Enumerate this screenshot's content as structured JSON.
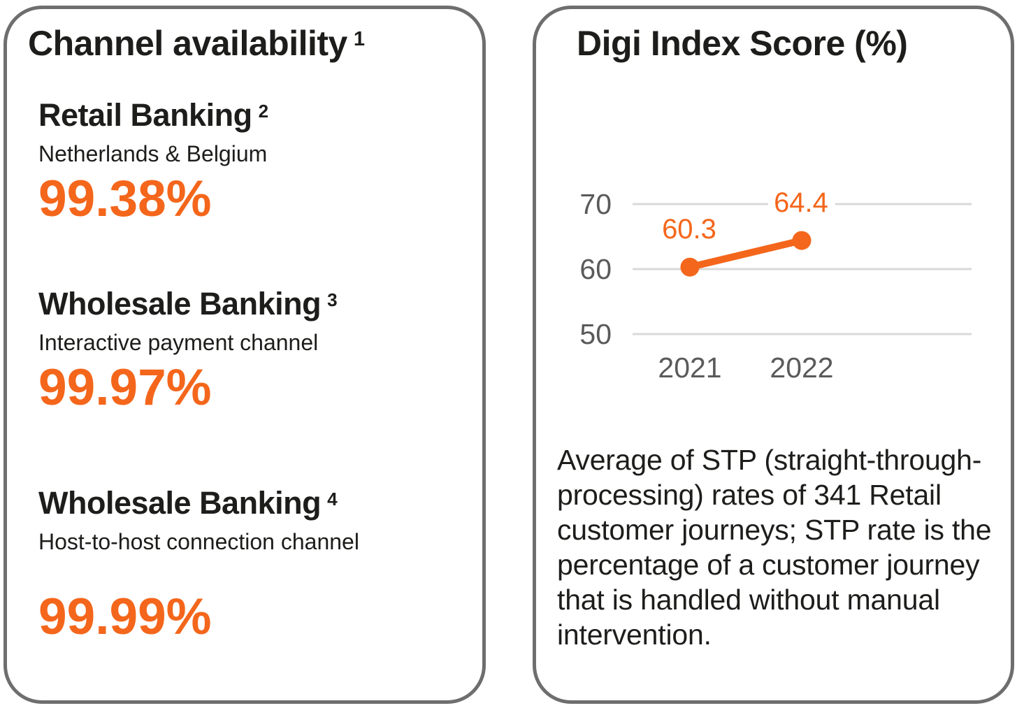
{
  "left_card": {
    "title": "Channel availability",
    "title_sup": "1",
    "metrics": [
      {
        "title": "Retail Banking",
        "sup": "2",
        "subtitle": "Netherlands & Belgium",
        "value": "99.38%"
      },
      {
        "title": "Wholesale Banking",
        "sup": "3",
        "subtitle": "Interactive payment channel",
        "value": "99.97%"
      },
      {
        "title": "Wholesale Banking",
        "sup": "4",
        "subtitle": "Host-to-host connection channel",
        "value": "99.99%"
      }
    ]
  },
  "right_card": {
    "title": "Digi Index Score (%)",
    "description": "Average of STP (straight-through-processing) rates of 341 Retail customer journeys; STP rate is the percentage of a customer journey that is handled without manual intervention."
  },
  "chart_data": {
    "type": "line",
    "title": "Digi Index Score (%)",
    "x": [
      "2021",
      "2022"
    ],
    "series": [
      {
        "name": "Digi Index Score",
        "values": [
          60.3,
          64.4
        ],
        "data_labels": [
          "60.3",
          "64.4"
        ]
      }
    ],
    "yticks": [
      70,
      60,
      50
    ],
    "ylim": [
      46,
      73
    ],
    "grid": true,
    "legend": "none",
    "line_color": "#F4661B"
  },
  "colors": {
    "accent_orange": "#F4661B",
    "axis_gray": "#5A5A5A",
    "grid_gray": "#D9D9D9",
    "border_gray": "#6E6E6E",
    "text_black": "#1D1D1B"
  }
}
